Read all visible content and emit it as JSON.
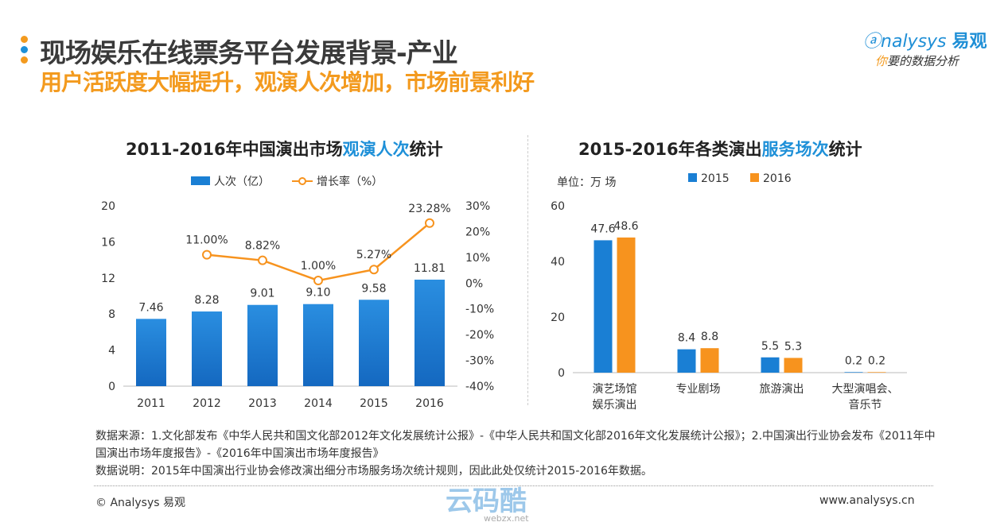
{
  "header": {
    "title": "现场娱乐在线票务平台发展背景-产业",
    "subtitle": "用户活跃度大幅提升，观演人次增加，市场前景利好",
    "logo": "nalysys",
    "logo_cn": "易观",
    "slogan_first": "你",
    "slogan_rest": "要的数据分析"
  },
  "colors": {
    "blue": "#1a7fd4",
    "orange": "#f7931e",
    "accent": "#f39a1e"
  },
  "chart_data": [
    {
      "type": "bar+line",
      "title_pre": "2011-2016年中国演出市场",
      "title_hl": "观演人次",
      "title_post": "统计",
      "categories": [
        "2011",
        "2012",
        "2013",
        "2014",
        "2015",
        "2016"
      ],
      "series": [
        {
          "name": "人次（亿）",
          "type": "bar",
          "values": [
            7.46,
            8.28,
            9.01,
            9.1,
            9.58,
            11.81
          ],
          "labels": [
            "7.46",
            "8.28",
            "9.01",
            "9.10",
            "9.58",
            "11.81"
          ]
        },
        {
          "name": "增长率（%）",
          "type": "line",
          "values": [
            null,
            11.0,
            8.82,
            1.0,
            5.27,
            23.28
          ],
          "labels": [
            "",
            "11.00%",
            "8.82%",
            "1.00%",
            "5.27%",
            "23.28%"
          ]
        }
      ],
      "ylim": [
        0,
        20
      ],
      "yticks": [
        "0",
        "4",
        "8",
        "12",
        "16",
        "20"
      ],
      "y2lim": [
        -40,
        30
      ],
      "y2ticks": [
        "-40%",
        "-30%",
        "-20%",
        "-10%",
        "0%",
        "10%",
        "20%",
        "30%"
      ],
      "legend": "top"
    },
    {
      "type": "bar",
      "title_pre": "2015-2016年各类演出",
      "title_hl": "服务场次",
      "title_post": "统计",
      "unit": "单位：万 场",
      "categories": [
        "演艺场馆\n娱乐演出",
        "专业剧场",
        "旅游演出",
        "大型演唱会、\n音乐节"
      ],
      "series": [
        {
          "name": "2015",
          "values": [
            47.6,
            8.4,
            5.5,
            0.2
          ]
        },
        {
          "name": "2016",
          "values": [
            48.6,
            8.8,
            5.3,
            0.2
          ]
        }
      ],
      "ylim": [
        0,
        60
      ],
      "yticks": [
        "0",
        "20",
        "40",
        "60"
      ],
      "legend": "top"
    }
  ],
  "notes": {
    "source": "数据来源：1.文化部发布《中华人民共和国文化部2012年文化发展统计公报》-《中华人民共和国文化部2016年文化发展统计公报》；2.中国演出行业协会发布《2011年中国演出市场年度报告》-《2016年中国演出市场年度报告》",
    "explain": "数据说明：2015年中国演出行业协会修改演出细分市场服务场次统计规则，因此此处仅统计2015-2016年数据。"
  },
  "footer": {
    "copyright": "© Analysys 易观",
    "url": "www.analysys.cn",
    "watermark": "云码酷",
    "watermark_sub": "webzx.net"
  }
}
